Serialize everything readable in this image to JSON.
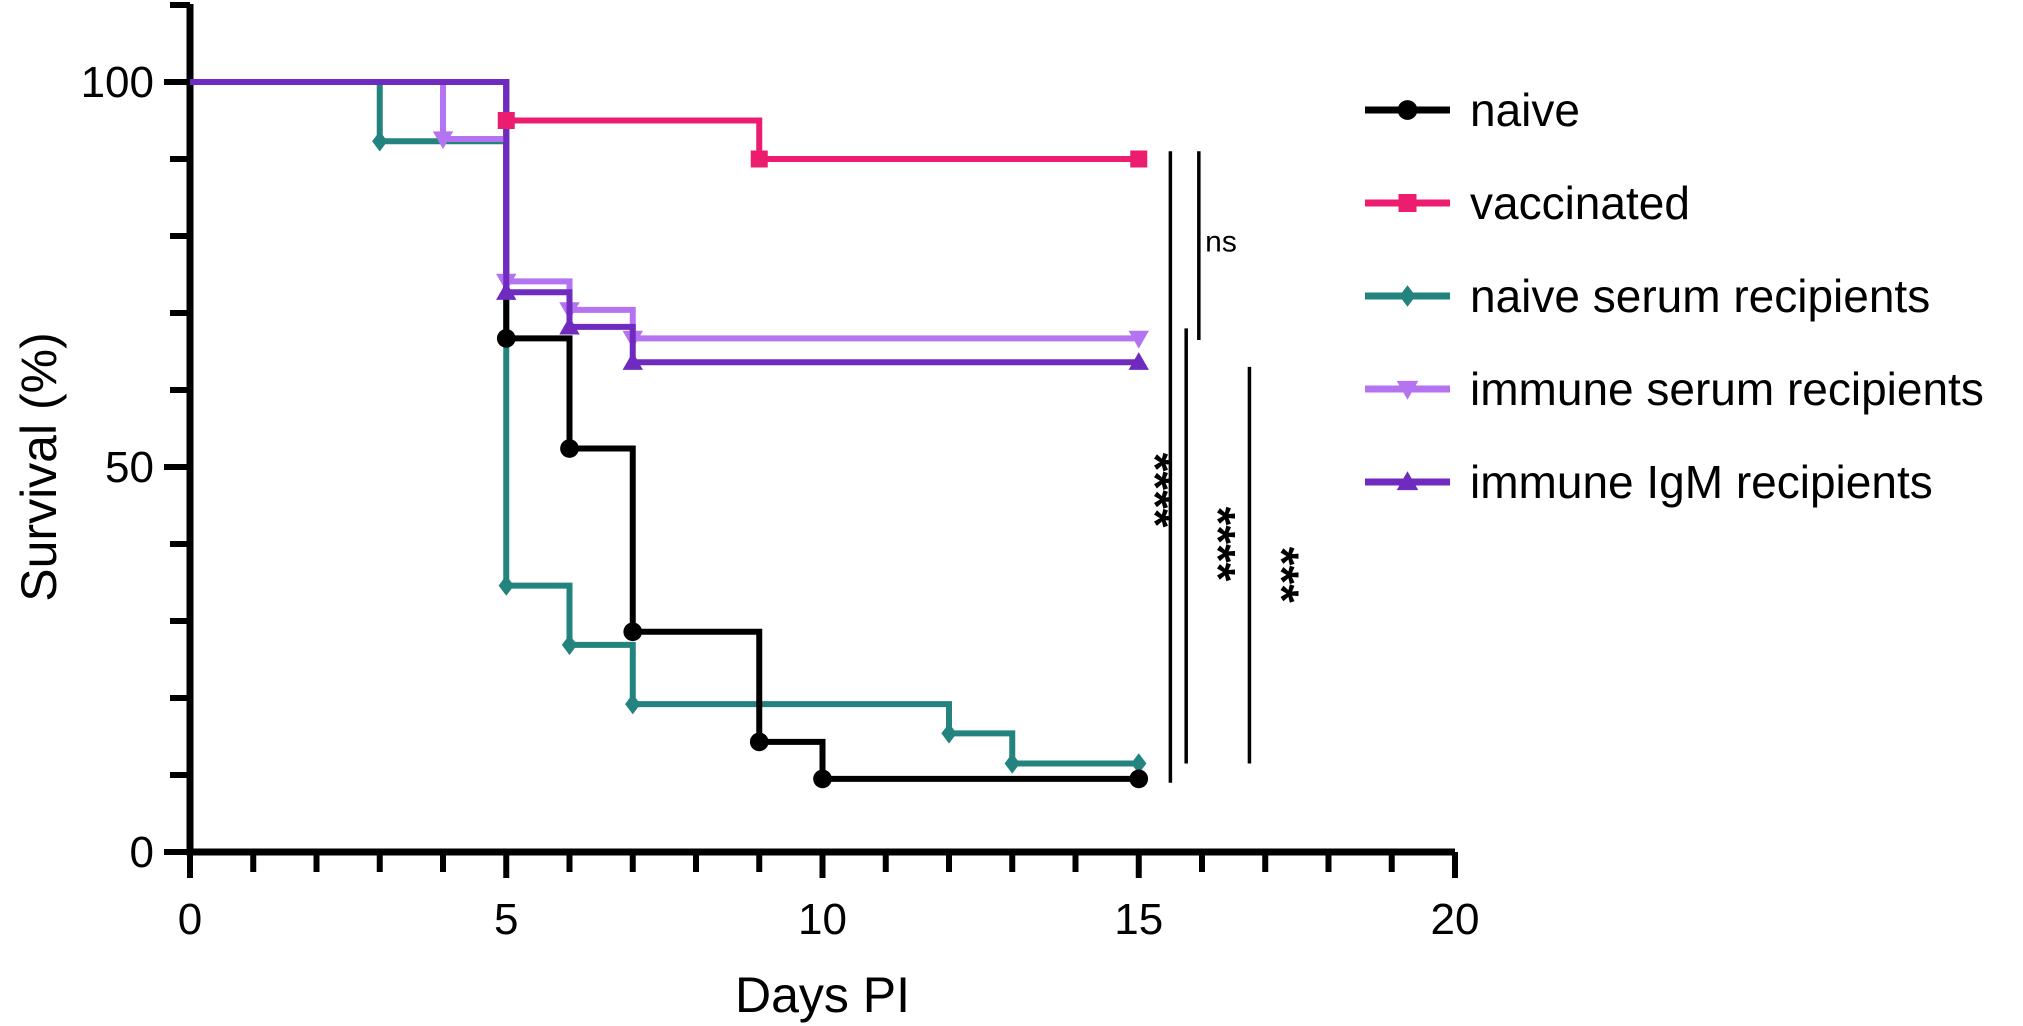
{
  "chart_data": {
    "type": "line",
    "step": true,
    "title": "",
    "xlabel": "Days PI",
    "ylabel": "Survival (%)",
    "xlim": [
      0,
      20
    ],
    "ylim": [
      0,
      110
    ],
    "xticks": [
      0,
      5,
      10,
      15,
      20
    ],
    "yticks": [
      0,
      50,
      100
    ],
    "grid": false,
    "legend_position": "right",
    "series": [
      {
        "name": "naive",
        "color": "#000000",
        "marker": "circle",
        "x": [
          0,
          5,
          6,
          7,
          9,
          10,
          15
        ],
        "y": [
          100,
          66.7,
          52.4,
          28.6,
          14.3,
          9.5,
          9.5
        ],
        "marker_points": [
          [
            5,
            66.7
          ],
          [
            6,
            52.4
          ],
          [
            7,
            28.6
          ],
          [
            9,
            14.3
          ],
          [
            10,
            9.5
          ],
          [
            15,
            9.5
          ]
        ]
      },
      {
        "name": "vaccinated",
        "color": "#EC1C6E",
        "marker": "square",
        "x": [
          5,
          9,
          15
        ],
        "y": [
          95,
          90,
          90
        ],
        "marker_points": [
          [
            5,
            95
          ],
          [
            9,
            90
          ],
          [
            15,
            90
          ]
        ]
      },
      {
        "name": "naive serum recipients",
        "color": "#22837F",
        "marker": "diamond",
        "x": [
          0,
          3,
          5,
          6,
          7,
          12,
          13,
          15
        ],
        "y": [
          100,
          92.3,
          34.6,
          26.9,
          19.2,
          15.4,
          11.5,
          11.5
        ],
        "marker_points": [
          [
            3,
            92.3
          ],
          [
            5,
            34.6
          ],
          [
            6,
            26.9
          ],
          [
            7,
            19.2
          ],
          [
            12,
            15.4
          ],
          [
            13,
            11.5
          ],
          [
            15,
            11.5
          ]
        ]
      },
      {
        "name": "immune serum recipients",
        "color": "#B473F0",
        "marker": "triangle-down",
        "x": [
          0,
          4,
          5,
          6,
          7,
          15
        ],
        "y": [
          100,
          92.6,
          74.1,
          70.4,
          66.7,
          66.7
        ],
        "marker_points": [
          [
            4,
            92.6
          ],
          [
            5,
            74.1
          ],
          [
            6,
            70.4
          ],
          [
            7,
            66.7
          ],
          [
            15,
            66.7
          ]
        ]
      },
      {
        "name": "immune IgM recipients",
        "color": "#6F2BBF",
        "marker": "triangle-up",
        "x": [
          0,
          5,
          6,
          7,
          15
        ],
        "y": [
          100,
          72.7,
          68.2,
          63.6,
          63.6
        ],
        "marker_points": [
          [
            5,
            72.7
          ],
          [
            6,
            68.2
          ],
          [
            7,
            63.6
          ],
          [
            15,
            63.6
          ]
        ]
      }
    ],
    "annotations": [
      {
        "type": "bracket",
        "x": 15.5,
        "y_top": 91,
        "y_bottom": 9,
        "label": "****",
        "label_x": 15.0,
        "label_y": 47,
        "rotated": true,
        "label_size": 48
      },
      {
        "type": "bracket",
        "x": 15.95,
        "y_top": 91,
        "y_bottom": 66.5,
        "label": "ns",
        "label_x": 16.3,
        "label_y": 78,
        "rotated": false,
        "label_size": 30
      },
      {
        "type": "bracket",
        "x": 15.75,
        "y_top": 68,
        "y_bottom": 11.5,
        "label": "****",
        "label_x": 16.0,
        "label_y": 40,
        "rotated": true,
        "label_size": 48
      },
      {
        "type": "bracket",
        "x": 16.75,
        "y_top": 63,
        "y_bottom": 11.5,
        "label": "***",
        "label_x": 17.0,
        "label_y": 36,
        "rotated": true,
        "label_size": 48
      }
    ]
  }
}
